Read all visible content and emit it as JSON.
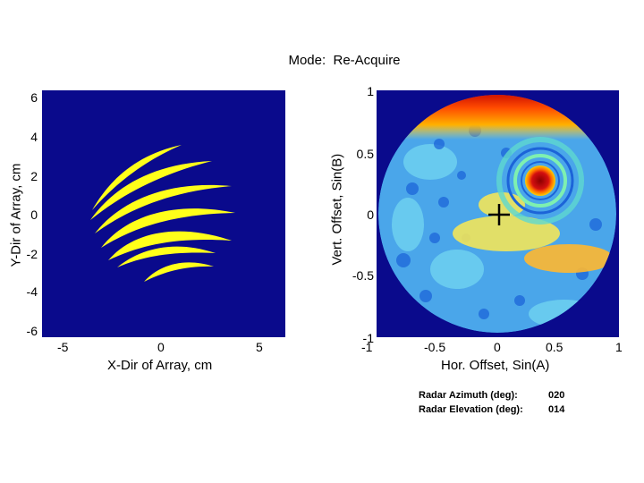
{
  "header": {
    "mode_label": "Mode:",
    "mode_value": "Re-Acquire"
  },
  "array_plot": {
    "ylabel": "Y-Dir of Array, cm",
    "xlabel": "X-Dir of Array, cm",
    "yticks": [
      "6",
      "4",
      "2",
      "0",
      "-2",
      "-4",
      "-6"
    ],
    "xticks": [
      "-5",
      "0",
      "5"
    ],
    "background_color": "#0a0a8c",
    "stripe_color": "#ffff1a"
  },
  "beam_plot": {
    "ylabel": "Vert. Offset, Sin(B)",
    "xlabel": "Hor. Offset, Sin(A)",
    "yticks": [
      "1",
      "0.5",
      "0",
      "-0.5",
      "-1"
    ],
    "xticks": [
      "-1",
      "-0.5",
      "0",
      "0.5",
      "1"
    ],
    "peak": {
      "x": 0.33,
      "y": 0.28
    },
    "crosshair": {
      "x": 0.0,
      "y": 0.0
    }
  },
  "readout": {
    "azimuth_label": "Radar Azimuth (deg):",
    "azimuth_value": "020",
    "elevation_label": "Radar Elevation (deg):",
    "elevation_value": "014"
  }
}
